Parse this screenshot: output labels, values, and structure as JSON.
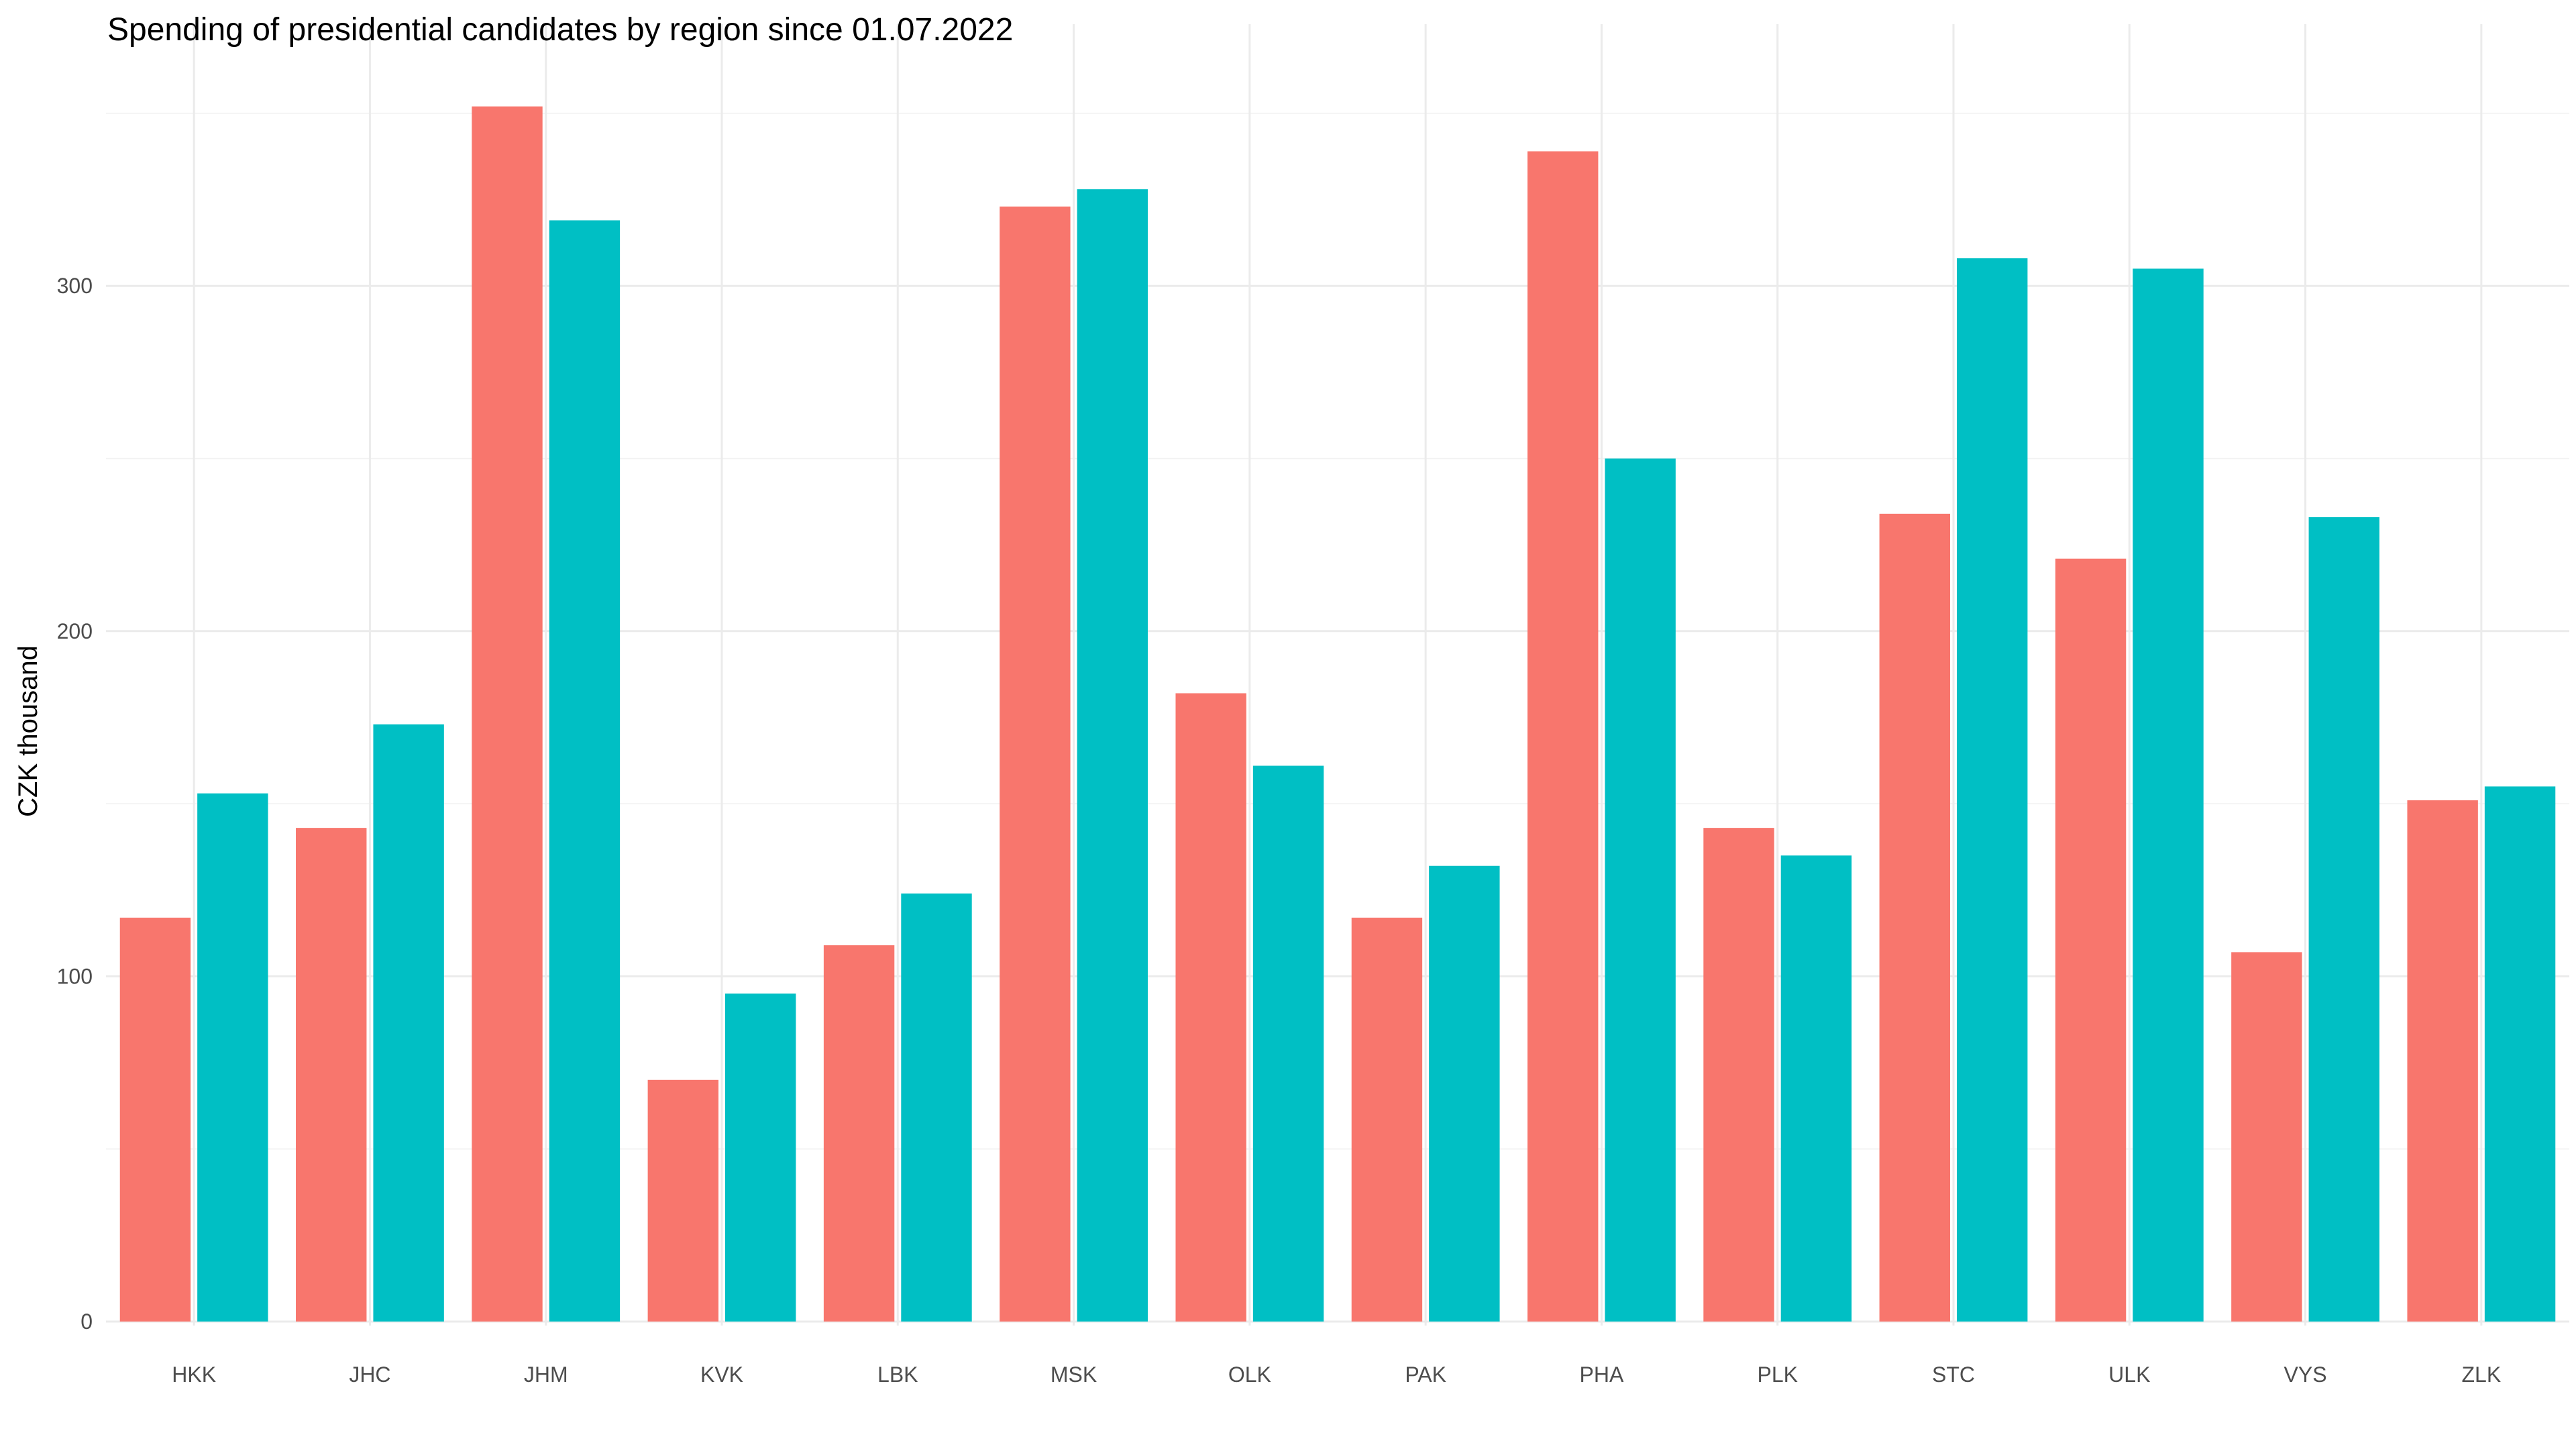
{
  "chart_data": {
    "type": "bar",
    "title": "Spending of presidential candidates by region since 01.07.2022",
    "xlabel": "",
    "ylabel": "CZK thousand",
    "categories": [
      "HKK",
      "JHC",
      "JHM",
      "KVK",
      "LBK",
      "MSK",
      "OLK",
      "PAK",
      "PHA",
      "PLK",
      "STC",
      "ULK",
      "VYS",
      "ZLK"
    ],
    "series": [
      {
        "color": "#F8766D",
        "values": [
          117,
          143,
          352,
          70,
          109,
          323,
          182,
          117,
          339,
          143,
          234,
          221,
          107,
          151
        ]
      },
      {
        "color": "#00BFC4",
        "values": [
          153,
          173,
          319,
          95,
          124,
          328,
          161,
          132,
          250,
          135,
          308,
          305,
          233,
          155
        ]
      }
    ],
    "ylim": [
      0,
      370
    ],
    "yticks": [
      0,
      100,
      200,
      300
    ],
    "ytick_labels": [
      "0",
      "100",
      "200",
      "300"
    ],
    "grid": true,
    "legend": "none"
  }
}
